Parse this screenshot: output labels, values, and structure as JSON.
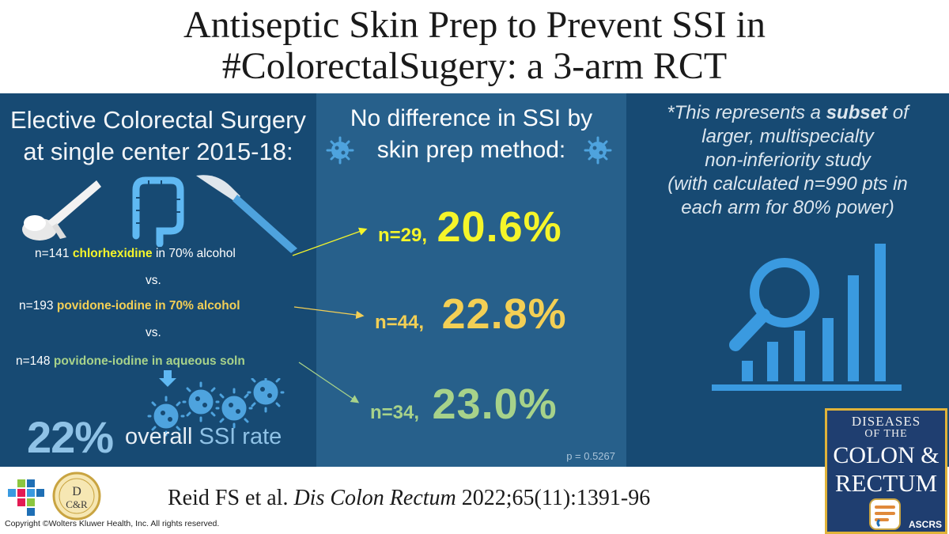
{
  "title": {
    "line1": "Antiseptic Skin Prep to Prevent SSI in",
    "line2": "#ColorectalSugery: a 3-arm RCT"
  },
  "left": {
    "heading_line1": "Elective Colorectal Surgery",
    "heading_line2": "at single center 2015-18:",
    "arms": [
      {
        "n": "n=141",
        "agent": "chlorhexidine",
        "suffix": " in 70% alcohol",
        "color": "#f5f52a"
      },
      {
        "n": "n=193",
        "agent": "povidone-iodine in 70% alcohol",
        "suffix": "",
        "color": "#f3cf55"
      },
      {
        "n": "n=148",
        "agent": "povidone-iodine in aqueous soln",
        "suffix": "",
        "color": "#a7d28a"
      }
    ],
    "vs1": "vs.",
    "vs2": "vs.",
    "overall_pct": "22%",
    "overall_word": "overall",
    "overall_ssi": "SSI rate"
  },
  "middle": {
    "heading_line1": "No difference in SSI by",
    "heading_line2": "skin prep method:",
    "results": [
      {
        "n": "n=29,",
        "pct": "20.6%",
        "color": "#f5f52a"
      },
      {
        "n": "n=44,",
        "pct": "22.8%",
        "color": "#f3cf55"
      },
      {
        "n": "n=34,",
        "pct": "23.0%",
        "color": "#a7d28a"
      }
    ],
    "p_value": "p = 0.5267"
  },
  "right": {
    "line1_pre": "*This represents a ",
    "line1_bold": "subset",
    "line1_post": " of",
    "line2": "larger, multispecialty",
    "line3": "non-inferiority study",
    "line4": "(with calculated n=990 pts in",
    "line5": "each arm for 80% power)"
  },
  "footer": {
    "citation_pre": "Reid FS et al. ",
    "citation_journal": "Dis Colon Rectum",
    "citation_post": " 2022;65(11):1391-96",
    "copyright": "Copyright ©Wolters Kluwer Health, Inc. All rights reserved.",
    "dcr_logo_letters": "D C&R"
  },
  "journal_cover": {
    "line1": "DISEASES",
    "line2": "OF THE",
    "line3": "COLON &",
    "line4": "RECTUM",
    "society": "ASCRS"
  },
  "icons": [
    "toothbrush-swab-icon",
    "colon-icon",
    "scalpel-icon",
    "bacteria-icon",
    "down-arrow-icon",
    "magnifier-bar-chart-icon",
    "wolters-kluwer-logo",
    "dcr-seal-logo",
    "journal-cover-icon"
  ],
  "colors": {
    "panel_dark": "#174a73",
    "panel_mid": "#27608b",
    "accent_blue": "#8fc2e6",
    "arm_yellow": "#f5f52a",
    "arm_gold": "#f3cf55",
    "arm_green": "#a7d28a",
    "journal_gold": "#e0b33a"
  }
}
